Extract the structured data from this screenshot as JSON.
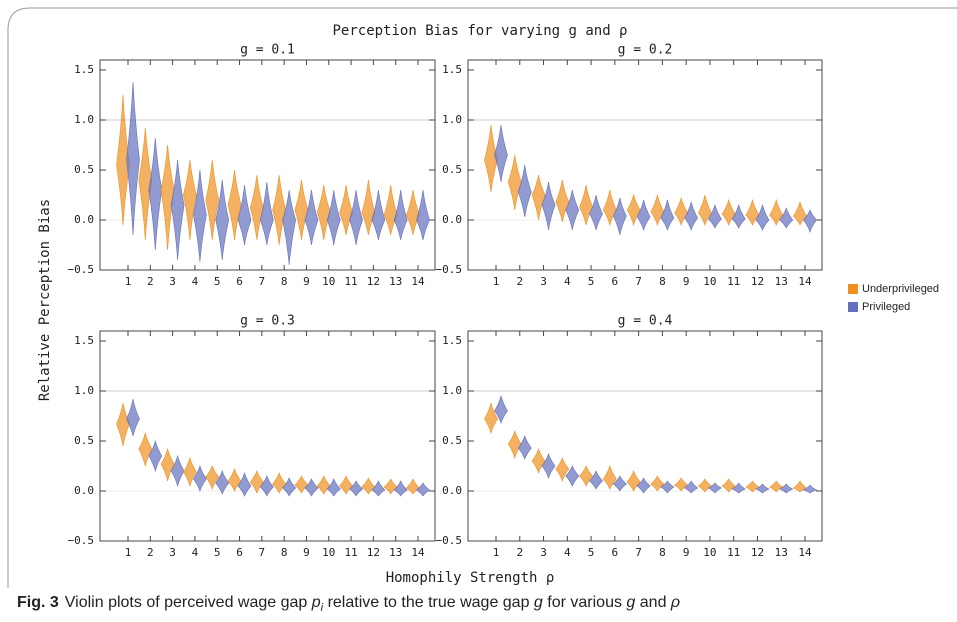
{
  "title": "Perception Bias for varying g and ρ",
  "xlabel": "Homophily Strength ρ",
  "ylabel": "Relative Perception Bias",
  "legend": [
    {
      "name": "Underprivileged",
      "color": "#f0901e"
    },
    {
      "name": "Privileged",
      "color": "#6470bd"
    }
  ],
  "caption": {
    "label": "Fig. 3",
    "parts": [
      "Violin plots of perceived wage gap ",
      "p",
      "i",
      " relative to the true wage gap ",
      "g",
      " for various ",
      "g",
      " and ",
      "ρ"
    ]
  },
  "chart_data": [
    {
      "type": "violin",
      "title": "g = 0.1",
      "categories": [
        "1",
        "2",
        "3",
        "4",
        "5",
        "6",
        "7",
        "8",
        "9",
        "10",
        "11",
        "12",
        "13",
        "14"
      ],
      "ylim": [
        -0.5,
        1.6
      ],
      "yticks": [
        {
          "value": -0.5,
          "label": "−0.5"
        },
        {
          "value": 0,
          "label": "0.0"
        },
        0.5,
        {
          "value": 1,
          "label": "1.0"
        },
        1.5
      ],
      "series": [
        {
          "values": [
            0.55,
            0.4,
            0.3,
            0.25,
            0.2,
            0.15,
            0.12,
            0.1,
            0.1,
            0.08,
            0.07,
            0.07,
            0.05,
            0.05
          ],
          "low": [
            -0.05,
            -0.2,
            -0.3,
            -0.2,
            -0.2,
            -0.2,
            -0.2,
            -0.25,
            -0.2,
            -0.2,
            -0.15,
            -0.15,
            -0.15,
            -0.15
          ],
          "high": [
            1.25,
            0.92,
            0.75,
            0.6,
            0.6,
            0.5,
            0.45,
            0.45,
            0.4,
            0.35,
            0.35,
            0.4,
            0.35,
            0.3
          ]
        },
        {
          "values": [
            0.6,
            0.3,
            0.15,
            0.05,
            0,
            0,
            0,
            0,
            0,
            0,
            0,
            0,
            0,
            0
          ],
          "low": [
            -0.15,
            -0.3,
            -0.4,
            -0.42,
            -0.4,
            -0.25,
            -0.25,
            -0.45,
            -0.25,
            -0.25,
            -0.25,
            -0.2,
            -0.2,
            -0.2
          ],
          "high": [
            1.38,
            0.82,
            0.6,
            0.5,
            0.4,
            0.35,
            0.38,
            0.3,
            0.3,
            0.3,
            0.3,
            0.3,
            0.3,
            0.3
          ]
        }
      ]
    },
    {
      "type": "violin",
      "title": "g = 0.2",
      "categories": [
        "1",
        "2",
        "3",
        "4",
        "5",
        "6",
        "7",
        "8",
        "9",
        "10",
        "11",
        "12",
        "13",
        "14"
      ],
      "ylim": [
        -0.5,
        1.6
      ],
      "yticks": [
        {
          "value": -0.5,
          "label": "−0.5"
        },
        {
          "value": 0,
          "label": "0.0"
        },
        0.5,
        {
          "value": 1,
          "label": "1.0"
        },
        1.5
      ],
      "series": [
        {
          "values": [
            0.6,
            0.38,
            0.25,
            0.18,
            0.13,
            0.1,
            0.1,
            0.08,
            0.07,
            0.07,
            0.06,
            0.05,
            0.05,
            0.04
          ],
          "low": [
            0.28,
            0.1,
            0,
            -0.02,
            -0.05,
            -0.05,
            -0.05,
            -0.05,
            -0.05,
            -0.05,
            -0.05,
            -0.05,
            -0.05,
            -0.05
          ],
          "high": [
            0.95,
            0.65,
            0.45,
            0.4,
            0.35,
            0.3,
            0.25,
            0.25,
            0.22,
            0.25,
            0.2,
            0.2,
            0.2,
            0.18
          ]
        },
        {
          "values": [
            0.65,
            0.28,
            0.15,
            0.1,
            0.06,
            0.04,
            0.03,
            0.02,
            0.02,
            0.01,
            0.01,
            0,
            0,
            0
          ],
          "low": [
            0.38,
            0.03,
            -0.1,
            -0.1,
            -0.1,
            -0.15,
            -0.1,
            -0.1,
            -0.1,
            -0.08,
            -0.08,
            -0.1,
            -0.08,
            -0.12
          ],
          "high": [
            0.95,
            0.55,
            0.38,
            0.3,
            0.25,
            0.22,
            0.2,
            0.2,
            0.18,
            0.15,
            0.15,
            0.15,
            0.12,
            0.1
          ]
        }
      ]
    },
    {
      "type": "violin",
      "title": "g = 0.3",
      "categories": [
        "1",
        "2",
        "3",
        "4",
        "5",
        "6",
        "7",
        "8",
        "9",
        "10",
        "11",
        "12",
        "13",
        "14"
      ],
      "ylim": [
        -0.5,
        1.6
      ],
      "yticks": [
        {
          "value": -0.5,
          "label": "−0.5"
        },
        {
          "value": 0,
          "label": "0.0"
        },
        0.5,
        {
          "value": 1,
          "label": "1.0"
        },
        1.5
      ],
      "series": [
        {
          "values": [
            0.67,
            0.42,
            0.27,
            0.19,
            0.14,
            0.1,
            0.09,
            0.07,
            0.06,
            0.05,
            0.05,
            0.04,
            0.04,
            0.03
          ],
          "low": [
            0.45,
            0.25,
            0.1,
            0.05,
            0.02,
            0,
            -0.02,
            -0.02,
            -0.02,
            -0.03,
            -0.03,
            -0.03,
            -0.03,
            -0.03
          ],
          "high": [
            0.88,
            0.58,
            0.42,
            0.33,
            0.25,
            0.22,
            0.2,
            0.18,
            0.15,
            0.15,
            0.15,
            0.13,
            0.12,
            0.12
          ]
        },
        {
          "values": [
            0.72,
            0.35,
            0.2,
            0.12,
            0.08,
            0.05,
            0.04,
            0.03,
            0.03,
            0.02,
            0.02,
            0.01,
            0.01,
            0.01
          ],
          "low": [
            0.55,
            0.2,
            0.05,
            0,
            -0.03,
            -0.05,
            -0.05,
            -0.05,
            -0.05,
            -0.05,
            -0.05,
            -0.05,
            -0.05,
            -0.05
          ],
          "high": [
            0.92,
            0.5,
            0.35,
            0.25,
            0.2,
            0.18,
            0.15,
            0.13,
            0.12,
            0.12,
            0.1,
            0.1,
            0.1,
            0.08
          ]
        }
      ]
    },
    {
      "type": "violin",
      "title": "g = 0.4",
      "categories": [
        "1",
        "2",
        "3",
        "4",
        "5",
        "6",
        "7",
        "8",
        "9",
        "10",
        "11",
        "12",
        "13",
        "14"
      ],
      "ylim": [
        -0.5,
        1.6
      ],
      "yticks": [
        {
          "value": -0.5,
          "label": "−0.5"
        },
        {
          "value": 0,
          "label": "0.0"
        },
        0.5,
        {
          "value": 1,
          "label": "1.0"
        },
        1.5
      ],
      "series": [
        {
          "values": [
            0.72,
            0.47,
            0.3,
            0.22,
            0.15,
            0.12,
            0.09,
            0.07,
            0.06,
            0.05,
            0.05,
            0.04,
            0.04,
            0.03
          ],
          "low": [
            0.58,
            0.33,
            0.18,
            0.1,
            0.05,
            0.02,
            0,
            0,
            0,
            -0.01,
            -0.01,
            -0.01,
            -0.01,
            -0.01
          ],
          "high": [
            0.88,
            0.6,
            0.42,
            0.33,
            0.25,
            0.25,
            0.2,
            0.15,
            0.13,
            0.12,
            0.12,
            0.1,
            0.1,
            0.1
          ]
        },
        {
          "values": [
            0.8,
            0.43,
            0.25,
            0.15,
            0.1,
            0.07,
            0.05,
            0.04,
            0.03,
            0.03,
            0.02,
            0.02,
            0.02,
            0.01
          ],
          "low": [
            0.68,
            0.32,
            0.13,
            0.05,
            0.02,
            0,
            -0.02,
            -0.02,
            -0.02,
            -0.02,
            -0.02,
            -0.02,
            -0.02,
            -0.02
          ],
          "high": [
            0.95,
            0.55,
            0.37,
            0.25,
            0.2,
            0.15,
            0.13,
            0.1,
            0.1,
            0.08,
            0.08,
            0.07,
            0.07,
            0.06
          ]
        }
      ]
    }
  ]
}
